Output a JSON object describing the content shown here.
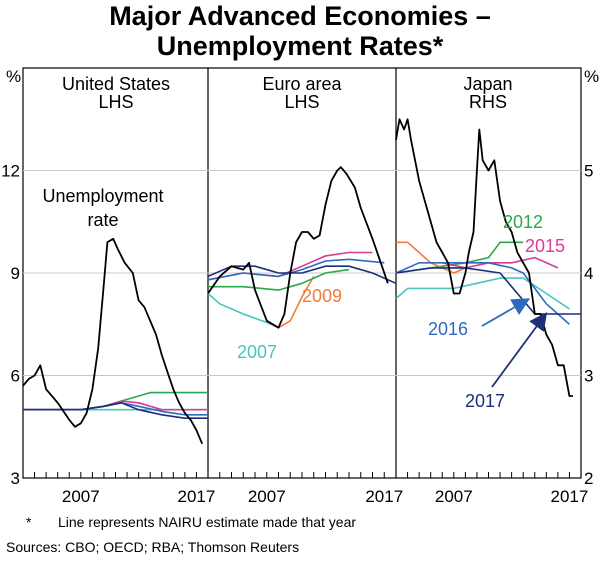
{
  "title_line1": "Major Advanced Economies –",
  "title_line2": "Unemployment Rates*",
  "footnote_mark": "*",
  "footnote_text": "Line represents NAIRU estimate made that year",
  "sources": "Sources: CBO; OECD; RBA; Thomson Reuters",
  "colors": {
    "unemployment": "#000000",
    "n2007": "#4dc3c0",
    "n2009": "#f07a3a",
    "n2012": "#2aa84a",
    "n2015": "#d63c94",
    "n2016": "#2d6bbf",
    "n2017": "#1c2f7a"
  },
  "chart_data": [
    {
      "type": "line",
      "panel": "United States",
      "title": "United States",
      "subtitle": "LHS",
      "axis_unit": "%",
      "ylim": [
        3,
        15
      ],
      "yticks": [
        3,
        6,
        9,
        12
      ],
      "xlim": [
        2002,
        2018
      ],
      "xticks_labeled": [
        "2007",
        "2017"
      ],
      "annotations": [
        "Unemployment",
        "rate"
      ],
      "series": [
        {
          "key": "unemployment",
          "x": [
            2002.0,
            2002.5,
            2003.0,
            2003.5,
            2004.0,
            2005.0,
            2006.0,
            2006.5,
            2007.0,
            2007.5,
            2008.0,
            2008.5,
            2009.0,
            2009.3,
            2009.8,
            2010.2,
            2010.8,
            2011.5,
            2012.0,
            2012.5,
            2013.0,
            2013.5,
            2014.0,
            2014.5,
            2015.0,
            2015.5,
            2016.0,
            2016.5,
            2017.0,
            2017.5
          ],
          "y": [
            5.7,
            5.9,
            6.0,
            6.3,
            5.6,
            5.2,
            4.7,
            4.5,
            4.6,
            4.9,
            5.6,
            6.8,
            8.7,
            9.9,
            10.0,
            9.7,
            9.3,
            9.0,
            8.2,
            8.0,
            7.6,
            7.2,
            6.6,
            6.1,
            5.6,
            5.2,
            4.9,
            4.7,
            4.4,
            4.0
          ]
        },
        {
          "key": "n2007",
          "x": [
            2002,
            2018
          ],
          "y": [
            5.0,
            5.0
          ]
        },
        {
          "key": "n2012",
          "x": [
            2002,
            2007,
            2009,
            2011,
            2013,
            2018
          ],
          "y": [
            5.0,
            5.0,
            5.1,
            5.3,
            5.5,
            5.5
          ]
        },
        {
          "key": "n2015",
          "x": [
            2002,
            2007,
            2009,
            2010.5,
            2012,
            2014,
            2018
          ],
          "y": [
            5.0,
            5.0,
            5.1,
            5.25,
            5.2,
            5.0,
            5.0
          ]
        },
        {
          "key": "n2016",
          "x": [
            2002,
            2007,
            2009,
            2010.5,
            2012,
            2014,
            2016,
            2018
          ],
          "y": [
            5.0,
            5.0,
            5.1,
            5.2,
            5.1,
            4.95,
            4.85,
            4.85
          ]
        },
        {
          "key": "n2017",
          "x": [
            2002,
            2007,
            2009,
            2010.5,
            2012,
            2014,
            2016,
            2018
          ],
          "y": [
            5.0,
            5.0,
            5.1,
            5.2,
            5.0,
            4.85,
            4.75,
            4.75
          ]
        }
      ]
    },
    {
      "type": "line",
      "panel": "Euro area",
      "title": "Euro area",
      "subtitle": "LHS",
      "ylim": [
        3,
        15
      ],
      "yticks": [
        3,
        6,
        9,
        12
      ],
      "xlim": [
        2002,
        2018
      ],
      "xticks_labeled": [
        "2007",
        "2017"
      ],
      "series": [
        {
          "key": "unemployment",
          "x": [
            2002.0,
            2003.0,
            2004.0,
            2005.0,
            2005.5,
            2006.0,
            2007.0,
            2008.0,
            2008.5,
            2009.0,
            2009.5,
            2010.0,
            2010.5,
            2011.0,
            2011.5,
            2012.0,
            2012.5,
            2013.0,
            2013.3,
            2013.8,
            2014.5,
            2015.0,
            2016.0,
            2017.0,
            2017.3
          ],
          "y": [
            8.4,
            8.9,
            9.2,
            9.1,
            9.3,
            8.5,
            7.6,
            7.4,
            7.8,
            9.0,
            9.9,
            10.2,
            10.2,
            10.0,
            10.1,
            11.0,
            11.7,
            12.0,
            12.1,
            11.9,
            11.5,
            10.9,
            10.0,
            9.0,
            8.7
          ]
        },
        {
          "key": "n2007",
          "x": [
            2002,
            2003,
            2005,
            2007,
            2008
          ],
          "y": [
            8.4,
            8.1,
            7.8,
            7.55,
            7.4
          ]
        },
        {
          "key": "n2009",
          "x": [
            2008,
            2009,
            2010,
            2011
          ],
          "y": [
            7.4,
            7.6,
            8.3,
            8.9
          ]
        },
        {
          "key": "n2012",
          "x": [
            2002,
            2005,
            2008,
            2010,
            2012,
            2014
          ],
          "y": [
            8.6,
            8.6,
            8.5,
            8.7,
            9.0,
            9.1
          ]
        },
        {
          "key": "n2015",
          "x": [
            2002,
            2005,
            2008,
            2010,
            2012,
            2014,
            2016
          ],
          "y": [
            8.8,
            9.0,
            8.9,
            9.2,
            9.5,
            9.6,
            9.6
          ]
        },
        {
          "key": "n2016",
          "x": [
            2002,
            2005,
            2008,
            2010,
            2012,
            2014,
            2017
          ],
          "y": [
            8.8,
            9.0,
            8.9,
            9.1,
            9.35,
            9.4,
            9.3
          ]
        },
        {
          "key": "n2017",
          "x": [
            2002,
            2004,
            2006,
            2008,
            2010,
            2012,
            2014,
            2016,
            2018
          ],
          "y": [
            8.9,
            9.2,
            9.2,
            9.0,
            9.0,
            9.2,
            9.2,
            9.0,
            8.7
          ]
        }
      ]
    },
    {
      "type": "line",
      "panel": "Japan",
      "title": "Japan",
      "subtitle": "RHS",
      "axis_unit": "%",
      "ylim": [
        2,
        6
      ],
      "yticks": [
        2,
        3,
        4,
        5
      ],
      "xlim": [
        2002,
        2018
      ],
      "xticks_labeled": [
        "2007",
        "2017"
      ],
      "series": [
        {
          "key": "unemployment",
          "x": [
            2002.0,
            2002.3,
            2002.7,
            2003.0,
            2003.3,
            2004.0,
            2004.5,
            2005.0,
            2005.5,
            2006.0,
            2006.5,
            2007.0,
            2007.5,
            2008.0,
            2008.3,
            2008.7,
            2009.0,
            2009.2,
            2009.5,
            2010.0,
            2010.5,
            2011.0,
            2011.5,
            2012.0,
            2012.5,
            2013.0,
            2013.5,
            2014.0,
            2014.5,
            2015.0,
            2015.5,
            2016.0,
            2016.5,
            2017.0,
            2017.3
          ],
          "y": [
            5.3,
            5.5,
            5.4,
            5.5,
            5.3,
            4.9,
            4.7,
            4.5,
            4.3,
            4.2,
            4.1,
            3.8,
            3.8,
            4.0,
            4.2,
            4.4,
            5.0,
            5.4,
            5.1,
            5.0,
            5.1,
            4.7,
            4.5,
            4.4,
            4.2,
            4.1,
            4.0,
            3.6,
            3.6,
            3.4,
            3.3,
            3.1,
            3.1,
            2.8,
            2.8
          ]
        },
        {
          "key": "n2012",
          "x": [
            2002,
            2005,
            2008,
            2010,
            2011,
            2013
          ],
          "y": [
            4.0,
            4.05,
            4.1,
            4.15,
            4.3,
            4.3
          ]
        },
        {
          "key": "n2015",
          "x": [
            2006,
            2008,
            2010,
            2012,
            2014,
            2016
          ],
          "y": [
            4.1,
            4.05,
            4.1,
            4.1,
            4.15,
            4.05
          ]
        },
        {
          "key": "n2007",
          "x": [
            2002,
            2003,
            2007,
            2009,
            2011,
            2013,
            2015,
            2017
          ],
          "y": [
            3.75,
            3.85,
            3.85,
            3.9,
            3.95,
            3.95,
            3.8,
            3.65
          ]
        },
        {
          "key": "n2009",
          "x": [
            2002,
            2003,
            2004,
            2005,
            2007,
            2008
          ],
          "y": [
            4.3,
            4.3,
            4.2,
            4.1,
            4.0,
            4.05
          ]
        },
        {
          "key": "n2016",
          "x": [
            2002,
            2004,
            2007,
            2010,
            2012,
            2013,
            2014,
            2015,
            2016,
            2017
          ],
          "y": [
            4.0,
            4.1,
            4.1,
            4.1,
            4.05,
            4.0,
            3.85,
            3.7,
            3.6,
            3.5
          ]
        },
        {
          "key": "n2017",
          "x": [
            2002,
            2005,
            2008,
            2011,
            2014,
            2015,
            2016,
            2017,
            2018
          ],
          "y": [
            4.0,
            4.05,
            4.05,
            4.0,
            3.6,
            3.6,
            3.6,
            3.6,
            3.6
          ]
        }
      ]
    }
  ],
  "labels": {
    "us_unemp_line1": "Unemployment",
    "us_unemp_line2": "rate",
    "lbl_2009": "2009",
    "lbl_2007": "2007",
    "lbl_2012": "2012",
    "lbl_2015": "2015",
    "lbl_2016": "2016",
    "lbl_2017": "2017",
    "pct": "%"
  }
}
